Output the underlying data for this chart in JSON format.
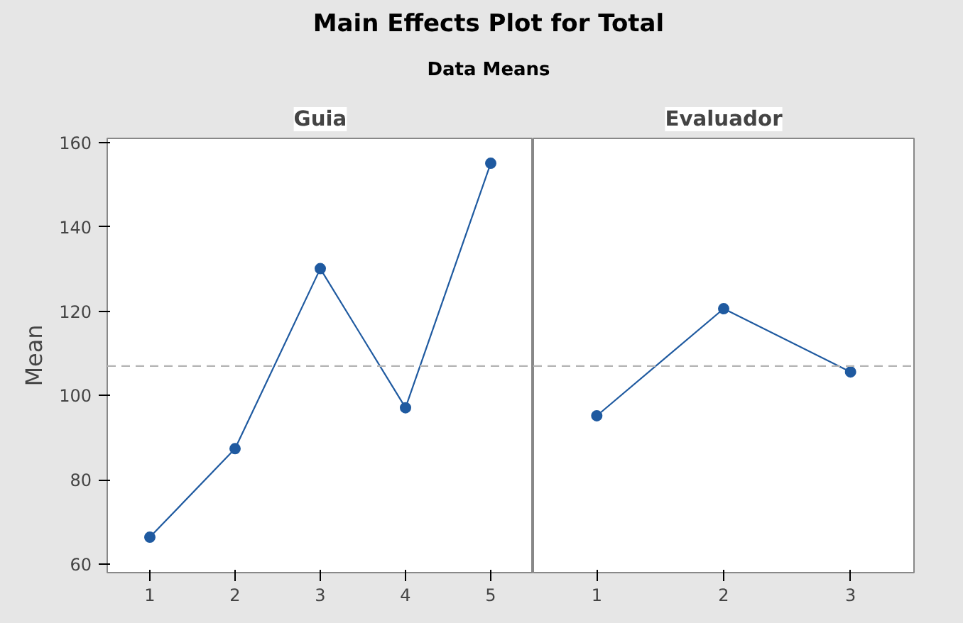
{
  "chart_data": [
    {
      "type": "line",
      "title": "Main Effects Plot for Total",
      "subtitle": "Data Means",
      "xlabel": "Guia",
      "ylabel": "Mean",
      "categories": [
        "1",
        "2",
        "3",
        "4",
        "5"
      ],
      "series": [
        {
          "color": "#1f5aa0",
          "values": [
            66.4,
            87.4,
            130.1,
            97.1,
            155.1
          ]
        }
      ],
      "ylim": [
        58,
        161
      ],
      "yticks": [
        60,
        80,
        100,
        120,
        140,
        160
      ],
      "marker": "circle",
      "line_style": "solid",
      "grid": false,
      "ref_lines": [
        {
          "axis": "y",
          "value": 107.0,
          "color": "#b4b4b4",
          "line_style": "dashed"
        }
      ]
    },
    {
      "type": "line",
      "xlabel": "Evaluador",
      "categories": [
        "1",
        "2",
        "3"
      ],
      "series": [
        {
          "color": "#1f5aa0",
          "values": [
            95.2,
            120.6,
            105.6
          ]
        }
      ],
      "ylim": [
        58,
        161
      ],
      "yticks": [
        60,
        80,
        100,
        120,
        140,
        160
      ],
      "tick_labels": "x",
      "marker": "circle",
      "line_style": "solid",
      "grid": false,
      "ref_lines": [
        {
          "axis": "y",
          "value": 107.0,
          "color": "#b4b4b4",
          "line_style": "dashed"
        }
      ]
    }
  ]
}
